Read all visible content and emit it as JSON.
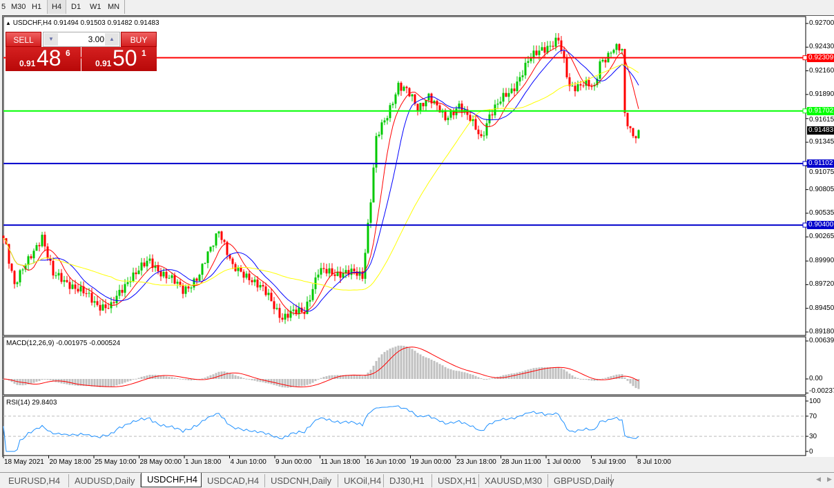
{
  "toolbar": {
    "timeframes": [
      {
        "label": "5"
      },
      {
        "label": "M30"
      },
      {
        "label": "H1"
      },
      {
        "label": "H4",
        "active": true
      },
      {
        "label": "D1"
      },
      {
        "label": "W1"
      },
      {
        "label": "MN"
      }
    ]
  },
  "chart": {
    "symbol_line": "USDCHF,H4  0.91494 0.91503 0.91482 0.91483",
    "symbol_icon": "triangle-up-icon"
  },
  "trade": {
    "sell_label": "SELL",
    "buy_label": "BUY",
    "lot": "3.00",
    "sell_prefix": "0.91",
    "sell_big": "48",
    "sell_sup": "6",
    "buy_prefix": "0.91",
    "buy_big": "50",
    "buy_sup": "1"
  },
  "price_axis": [
    "0.92700",
    "0.92430",
    "0.92160",
    "0.91890",
    "0.91615",
    "0.91345",
    "0.91075",
    "0.90805",
    "0.90535",
    "0.90265",
    "0.89990",
    "0.89720",
    "0.89450",
    "0.89180"
  ],
  "levels": [
    {
      "price": 0.92309,
      "label": "0.92309",
      "color": "#ff0000"
    },
    {
      "price": 0.91702,
      "label": "0.91702",
      "color": "#00ff00"
    },
    {
      "price": 0.91102,
      "label": "0.91102",
      "color": "#0000cc"
    },
    {
      "price": 0.904,
      "label": "0.90400",
      "color": "#0000cc"
    }
  ],
  "current_price": {
    "price": 0.91483,
    "label": "0.91483"
  },
  "macd": {
    "label": "MACD(12,26,9) -0.001975 -0.000524",
    "axis": [
      "0.006397",
      "0.00",
      "-0.00237"
    ]
  },
  "rsi": {
    "label": "RSI(14) 29.8403",
    "axis": [
      "100",
      "70",
      "30",
      "0"
    ],
    "levels": [
      70,
      30
    ]
  },
  "time_axis": [
    "18 May 2021",
    "20 May 18:00",
    "25 May 10:00",
    "28 May 00:00",
    "1 Jun 18:00",
    "4 Jun 10:00",
    "9 Jun 00:00",
    "11 Jun 18:00",
    "16 Jun 10:00",
    "19 Jun 00:00",
    "23 Jun 18:00",
    "28 Jun 11:00",
    "1 Jul 00:00",
    "5 Jul 19:00",
    "8 Jul 10:00"
  ],
  "tabs": [
    {
      "label": "EURUSD,H4"
    },
    {
      "label": "AUDUSD,Daily"
    },
    {
      "label": "USDCHF,H4",
      "active": true
    },
    {
      "label": "USDCAD,H4"
    },
    {
      "label": "USDCNH,Daily"
    },
    {
      "label": "UKOil,H4"
    },
    {
      "label": "DJ30,H1"
    },
    {
      "label": "USDX,H1"
    },
    {
      "label": "XAUUSD,M30"
    },
    {
      "label": "GBPUSD,Daily"
    }
  ],
  "colors": {
    "bull": "#00c800",
    "bear": "#ff0000",
    "ma_fast": "#ff0000",
    "ma_mid": "#0000ff",
    "ma_slow": "#ffff00",
    "macd_hist": "#c0c0c0",
    "macd_signal": "#ff0000",
    "rsi": "#1e90ff"
  },
  "chart_data": {
    "type": "candlestick",
    "ylim": [
      0.8918,
      0.927
    ],
    "approx_close_path": [
      [
        0,
        0.9025
      ],
      [
        1,
        0.9017
      ],
      [
        4,
        0.8974
      ],
      [
        9,
        0.8998
      ],
      [
        14,
        0.9029
      ],
      [
        18,
        0.8982
      ],
      [
        24,
        0.8974
      ],
      [
        34,
        0.895
      ],
      [
        39,
        0.8946
      ],
      [
        46,
        0.8982
      ],
      [
        53,
        0.8998
      ],
      [
        59,
        0.8982
      ],
      [
        65,
        0.8966
      ],
      [
        71,
        0.8982
      ],
      [
        78,
        0.9037
      ],
      [
        83,
        0.899
      ],
      [
        89,
        0.8982
      ],
      [
        96,
        0.8958
      ],
      [
        101,
        0.8935
      ],
      [
        109,
        0.8943
      ],
      [
        114,
        0.8986
      ],
      [
        124,
        0.8986
      ],
      [
        130,
        0.8982
      ],
      [
        133,
        0.9072
      ],
      [
        135,
        0.9139
      ],
      [
        139,
        0.9163
      ],
      [
        143,
        0.9202
      ],
      [
        146,
        0.9194
      ],
      [
        150,
        0.9171
      ],
      [
        154,
        0.919
      ],
      [
        160,
        0.9159
      ],
      [
        165,
        0.9179
      ],
      [
        173,
        0.9139
      ],
      [
        176,
        0.9167
      ],
      [
        184,
        0.9194
      ],
      [
        190,
        0.9226
      ],
      [
        195,
        0.9242
      ],
      [
        201,
        0.925
      ],
      [
        205,
        0.9198
      ],
      [
        210,
        0.9202
      ],
      [
        214,
        0.9194
      ],
      [
        216,
        0.9226
      ],
      [
        221,
        0.9242
      ],
      [
        224,
        0.9238
      ],
      [
        225,
        0.9163
      ],
      [
        228,
        0.9143
      ],
      [
        230,
        0.91483
      ]
    ]
  }
}
